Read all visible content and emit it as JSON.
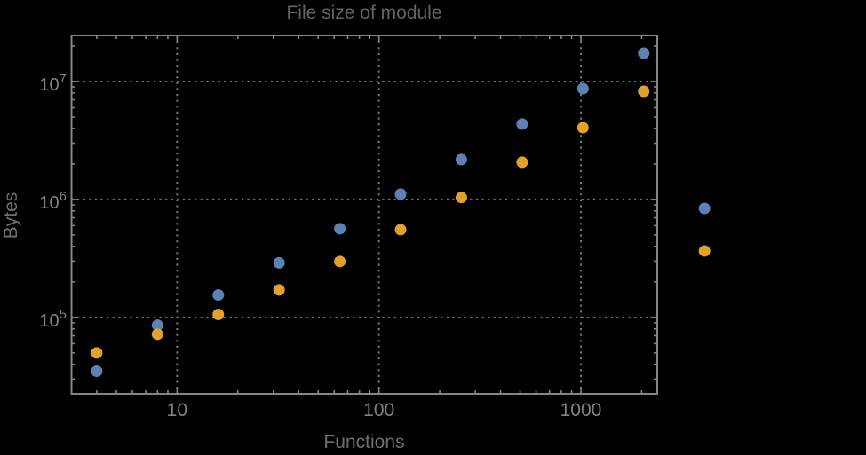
{
  "colors": {
    "background": "#000000",
    "frame": "#858585",
    "grid": "#747474",
    "tick_label_text": "#828282",
    "title_text": "#636363",
    "axis_label_text": "#6f6f6f",
    "series_blue": "#5e81b5",
    "series_orange": "#e3a02b"
  },
  "chart_data": {
    "type": "scatter",
    "title": "File size of module",
    "xlabel": "Functions",
    "ylabel": "Bytes",
    "x_scale": "log",
    "y_scale": "log",
    "xlim": [
      3.0,
      2390
    ],
    "ylim": [
      22500,
      24600000
    ],
    "grid": "dotted",
    "x_major_ticks": [
      10,
      100,
      1000
    ],
    "x_major_tick_labels": [
      "10",
      "100",
      "1000"
    ],
    "y_major_ticks": [
      100000,
      1000000,
      10000000
    ],
    "y_major_tick_labels": [
      {
        "mantissa": "10",
        "exponent": "5"
      },
      {
        "mantissa": "10",
        "exponent": "6"
      },
      {
        "mantissa": "10",
        "exponent": "7"
      }
    ],
    "x": [
      4,
      8,
      16,
      32,
      64,
      128,
      256,
      512,
      1024,
      2048,
      4096
    ],
    "series": [
      {
        "name": "series-1-blue",
        "color": "#5e81b5",
        "values": [
          35000,
          86000,
          155000,
          290000,
          565000,
          1110000,
          2180000,
          4360000,
          8700000,
          17400000,
          840000
        ]
      },
      {
        "name": "series-2-orange",
        "color": "#e3a02b",
        "values": [
          50000,
          72000,
          106000,
          171000,
          298000,
          555000,
          1040000,
          2070000,
          4060000,
          8260000,
          366000
        ]
      }
    ]
  }
}
